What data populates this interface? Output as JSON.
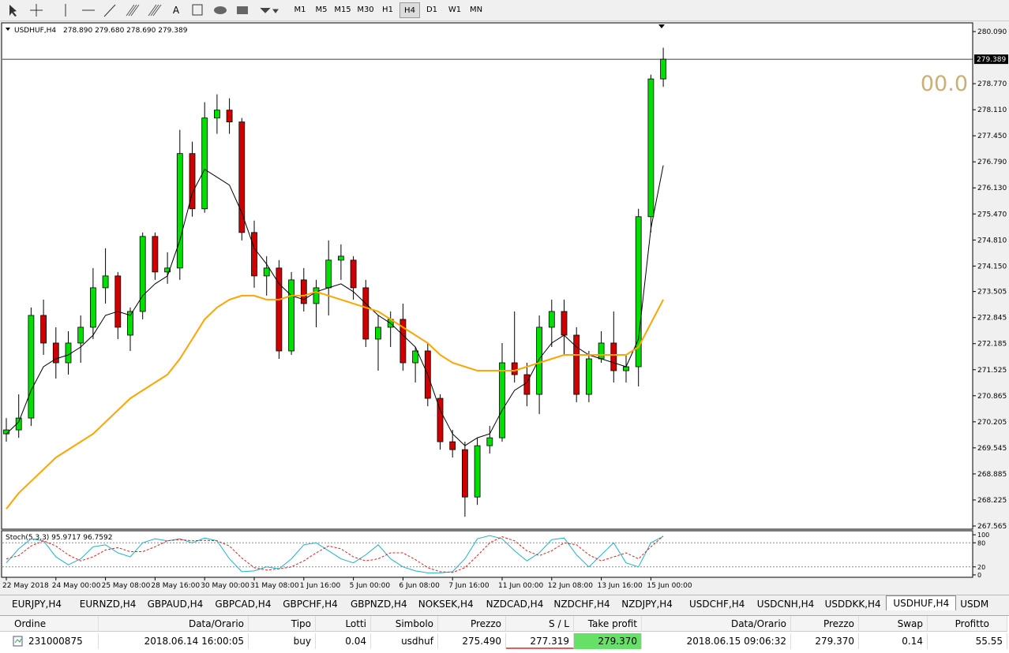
{
  "toolbar": {
    "timeframes": [
      {
        "label": "M1"
      },
      {
        "label": "M5"
      },
      {
        "label": "M15"
      },
      {
        "label": "M30"
      },
      {
        "label": "H1"
      },
      {
        "label": "H4",
        "selected": true
      },
      {
        "label": "D1"
      },
      {
        "label": "W1"
      },
      {
        "label": "MN"
      }
    ]
  },
  "chart_data": {
    "type": "candlestick",
    "title": "USDHUF,H4",
    "quote": "278.890 279.680 278.690 279.389",
    "overlay_text": "00.0",
    "categories": [
      "22 May 2018",
      null,
      null,
      null,
      "24 May 00:00",
      null,
      null,
      null,
      "25 May 08:00",
      null,
      null,
      null,
      "28 May 16:00",
      null,
      null,
      null,
      "30 May 00:00",
      null,
      null,
      null,
      "31 May 08:00",
      null,
      null,
      null,
      "1 Jun 16:00",
      null,
      null,
      null,
      "5 Jun 00:00",
      null,
      null,
      null,
      "6 Jun 08:00",
      null,
      null,
      null,
      "7 Jun 16:00",
      null,
      null,
      null,
      "11 Jun 00:00",
      null,
      null,
      null,
      "12 Jun 08:00",
      null,
      null,
      null,
      "13 Jun 16:00",
      null,
      null,
      null,
      "15 Jun 00:00",
      null
    ],
    "open": [
      269.9,
      270.0,
      270.3,
      272.9,
      272.2,
      271.7,
      272.2,
      272.6,
      273.6,
      273.9,
      272.4,
      273.0,
      274.9,
      274.0,
      274.1,
      277.0,
      275.6,
      277.9,
      278.1,
      277.8,
      275.0,
      273.9,
      274.1,
      272.0,
      273.8,
      273.2,
      273.6,
      274.3,
      274.3,
      273.6,
      272.3,
      272.6,
      272.8,
      271.7,
      272.0,
      270.8,
      269.7,
      269.5,
      268.3,
      269.6,
      269.8,
      271.7,
      271.4,
      270.9,
      272.6,
      273.0,
      272.4,
      270.9,
      271.8,
      272.2,
      271.5,
      271.6,
      275.4,
      278.89
    ],
    "high": [
      270.3,
      270.9,
      273.1,
      273.3,
      272.6,
      272.5,
      272.9,
      274.1,
      274.6,
      274.0,
      273.1,
      275.0,
      275.0,
      274.5,
      277.6,
      277.3,
      278.3,
      278.5,
      278.4,
      277.9,
      275.3,
      274.4,
      274.3,
      274.0,
      274.1,
      273.8,
      274.8,
      274.7,
      274.4,
      273.8,
      272.9,
      273.0,
      273.2,
      272.1,
      272.2,
      270.9,
      270.0,
      269.7,
      269.8,
      270.1,
      272.2,
      273.0,
      271.7,
      272.9,
      273.3,
      273.3,
      272.6,
      272.0,
      272.5,
      273.0,
      271.9,
      275.6,
      279.0,
      279.68
    ],
    "low": [
      269.7,
      269.8,
      270.1,
      271.9,
      271.3,
      271.4,
      271.7,
      272.3,
      273.2,
      272.3,
      272.0,
      272.8,
      273.8,
      273.7,
      273.8,
      275.4,
      275.5,
      277.5,
      277.5,
      274.8,
      273.6,
      273.4,
      271.8,
      271.9,
      273.0,
      272.6,
      272.9,
      273.8,
      273.3,
      272.1,
      271.5,
      272.1,
      271.5,
      271.2,
      270.6,
      269.5,
      269.3,
      267.8,
      268.1,
      269.4,
      269.7,
      271.2,
      270.6,
      270.4,
      272.1,
      271.9,
      270.7,
      270.7,
      271.7,
      271.2,
      271.2,
      271.1,
      275.0,
      278.69
    ],
    "close": [
      270.0,
      270.3,
      272.9,
      272.2,
      271.7,
      272.2,
      272.6,
      273.6,
      273.9,
      272.6,
      273.0,
      274.9,
      274.0,
      274.1,
      277.0,
      275.6,
      277.9,
      278.1,
      277.8,
      275.0,
      273.9,
      274.1,
      272.0,
      273.8,
      273.2,
      273.6,
      274.3,
      274.4,
      273.6,
      272.3,
      272.6,
      272.8,
      271.7,
      272.0,
      270.8,
      269.7,
      269.5,
      268.3,
      269.6,
      269.8,
      271.7,
      271.4,
      270.9,
      272.6,
      273.0,
      272.4,
      270.9,
      271.8,
      272.2,
      271.5,
      271.6,
      275.4,
      278.89,
      279.389
    ],
    "up_color": "#00e000",
    "down_color": "#d00000",
    "lines": [
      {
        "color": "#000000",
        "values": [
          269.9,
          270.2,
          271.0,
          271.6,
          271.8,
          271.9,
          272.1,
          272.4,
          272.9,
          273.0,
          272.9,
          273.4,
          273.7,
          273.9,
          274.8,
          276.0,
          276.6,
          276.4,
          276.2,
          275.5,
          274.6,
          274.2,
          273.7,
          273.4,
          273.3,
          273.5,
          273.6,
          273.7,
          273.5,
          273.2,
          272.9,
          272.7,
          272.4,
          272.1,
          271.4,
          270.5,
          269.9,
          269.6,
          269.8,
          269.9,
          270.5,
          271.0,
          271.2,
          271.8,
          272.2,
          272.4,
          272.1,
          271.9,
          271.8,
          271.7,
          271.6,
          272.3,
          275.1,
          276.7
        ]
      },
      {
        "color": "#ffa500",
        "values": [
          268.0,
          268.4,
          268.7,
          269.0,
          269.3,
          269.5,
          269.7,
          269.9,
          270.2,
          270.5,
          270.8,
          271.0,
          271.2,
          271.4,
          271.8,
          272.3,
          272.8,
          273.1,
          273.3,
          273.4,
          273.4,
          273.3,
          273.3,
          273.4,
          273.4,
          273.5,
          273.4,
          273.3,
          273.2,
          273.1,
          273.0,
          272.8,
          272.6,
          272.4,
          272.2,
          271.9,
          271.7,
          271.6,
          271.5,
          271.5,
          271.5,
          271.5,
          271.6,
          271.7,
          271.8,
          271.9,
          271.9,
          271.9,
          271.9,
          271.9,
          271.9,
          272.1,
          272.7,
          273.3
        ]
      }
    ],
    "current_price": {
      "value": 279.389,
      "label": "279.389"
    },
    "ylim": [
      267.505,
      280.29
    ],
    "yticks": [
      {
        "value": 280.09,
        "label": "280.090"
      },
      {
        "value": 278.77,
        "label": "278.770"
      },
      {
        "value": 278.11,
        "label": "278.110"
      },
      {
        "value": 277.45,
        "label": "277.450"
      },
      {
        "value": 276.79,
        "label": "276.790"
      },
      {
        "value": 276.13,
        "label": "276.130"
      },
      {
        "value": 275.47,
        "label": "275.470"
      },
      {
        "value": 274.81,
        "label": "274.810"
      },
      {
        "value": 274.15,
        "label": "274.150"
      },
      273.505,
      272.845,
      272.185,
      271.525,
      270.865,
      270.205,
      269.545,
      268.885,
      268.225,
      267.565
    ],
    "indicator": {
      "label": "Stoch(5,3,3) 95.9717 96.7592",
      "ylim": [
        -4,
        110
      ],
      "yticks": [
        100,
        80,
        20,
        0
      ],
      "levels": [
        80,
        20
      ],
      "main": {
        "color": "#20b2c8",
        "values": [
          30,
          65,
          90,
          85,
          45,
          25,
          40,
          70,
          75,
          55,
          45,
          80,
          90,
          85,
          90,
          80,
          92,
          85,
          40,
          8,
          10,
          20,
          15,
          40,
          75,
          80,
          60,
          40,
          30,
          50,
          75,
          40,
          20,
          10,
          5,
          5,
          8,
          40,
          90,
          98,
          90,
          60,
          35,
          55,
          88,
          92,
          50,
          20,
          50,
          80,
          30,
          20,
          80,
          95.9717
        ]
      },
      "signal": {
        "color": "#e02020",
        "values": [
          40,
          48,
          72,
          85,
          72,
          50,
          35,
          45,
          62,
          68,
          58,
          58,
          70,
          85,
          88,
          85,
          86,
          85,
          72,
          42,
          18,
          12,
          15,
          20,
          35,
          55,
          72,
          65,
          45,
          35,
          40,
          55,
          55,
          38,
          18,
          8,
          6,
          18,
          48,
          80,
          95,
          85,
          60,
          48,
          60,
          80,
          75,
          50,
          35,
          45,
          55,
          40,
          70,
          96.7592
        ]
      }
    }
  },
  "tabs": [
    {
      "label": "EURJPY,H4"
    },
    {
      "label": "EURNZD,H4"
    },
    {
      "label": "GBPAUD,H4"
    },
    {
      "label": "GBPCAD,H4"
    },
    {
      "label": "GBPCHF,H4"
    },
    {
      "label": "GBPNZD,H4"
    },
    {
      "label": "NOKSEK,H4"
    },
    {
      "label": "NZDCAD,H4"
    },
    {
      "label": "NZDCHF,H4"
    },
    {
      "label": "NZDJPY,H4"
    },
    {
      "label": "USDCHF,H4"
    },
    {
      "label": "USDCNH,H4"
    },
    {
      "label": "USDDKK,H4"
    },
    {
      "label": "USDHUF,H4",
      "selected": true
    },
    {
      "label": "USDM"
    }
  ],
  "table": {
    "headers": [
      "Ordine",
      "Data/Orario",
      "Tipo",
      "Lotti",
      "Simbolo",
      "Prezzo",
      "S / L",
      "Take profit",
      "Data/Orario",
      "Prezzo",
      "Swap",
      "Profitto"
    ],
    "rows": [
      [
        "231000875",
        "2018.06.14 16:00:05",
        "buy",
        "0.04",
        "usdhuf",
        "275.490",
        "277.319",
        "279.370",
        "2018.06.15 09:06:32",
        "279.370",
        "0.14",
        "55.55"
      ]
    ]
  }
}
